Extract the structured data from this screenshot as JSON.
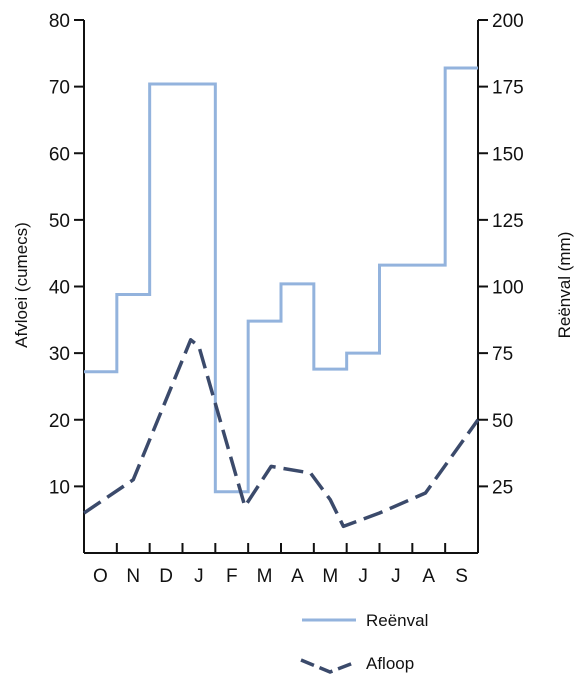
{
  "chart_data": {
    "type": "line",
    "categories": [
      "O",
      "N",
      "D",
      "J",
      "F",
      "M",
      "A",
      "M",
      "J",
      "J",
      "A",
      "S"
    ],
    "series": [
      {
        "name": "Reënval",
        "axis": "right",
        "style": "step",
        "color": "#93b3dd",
        "values": [
          68,
          97,
          176,
          176,
          23,
          87,
          101,
          69,
          75,
          108,
          108,
          182
        ]
      },
      {
        "name": "Afloop",
        "axis": "left",
        "style": "dashed",
        "color": "#3b4a6b",
        "x": [
          0,
          1.5,
          3.25,
          3.5,
          4.9,
          5.7,
          6.9,
          7.2,
          7.5,
          7.9,
          9.0,
          10.4,
          12
        ],
        "values": [
          6,
          11,
          32,
          31,
          7,
          13,
          12,
          10,
          8,
          4,
          6,
          9,
          20
        ]
      }
    ],
    "y_left": {
      "label": "Afvloei (cumecs)",
      "ylim": [
        0,
        80
      ],
      "ticks": [
        "10",
        "20",
        "30",
        "40",
        "50",
        "60",
        "70",
        "80"
      ]
    },
    "y_right": {
      "label": "Reënval (mm)",
      "ylim": [
        0,
        200
      ],
      "ticks": [
        "25",
        "50",
        "75",
        "100",
        "125",
        "150",
        "175",
        "200"
      ]
    },
    "grid": false,
    "legend_position": "bottom-right"
  }
}
